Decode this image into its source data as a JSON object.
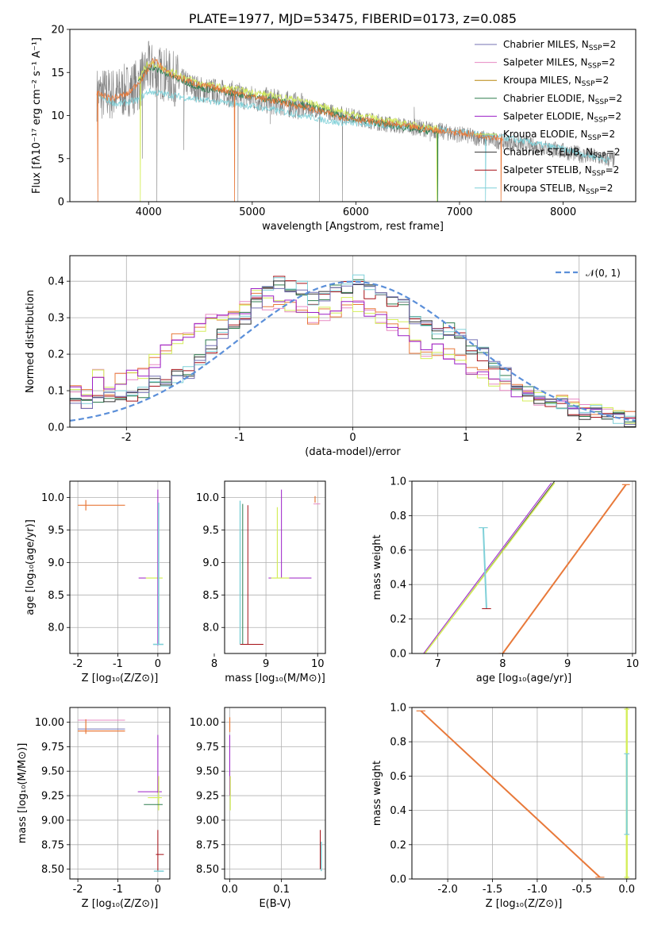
{
  "colors": {
    "Chabrier MILES": "#7570b3",
    "Salpeter MILES": "#e78ac3",
    "Kroupa MILES": "#b8860b",
    "Chabrier ELODIE": "#2e7d4f",
    "Salpeter ELODIE": "#9b1fc6",
    "Kroupa ELODIE": "#d4ee5a",
    "Chabrier STELIB": "#333333",
    "Salpeter STELIB": "#a50f15",
    "Kroupa STELIB": "#7fd0d8",
    "data": "#808080",
    "orange": "#e8793a",
    "normal": "#5b8fd9"
  },
  "chart_data": [
    {
      "id": "spectrum",
      "type": "line",
      "title": "PLATE=1977, MJD=53475, FIBERID=0173, z=0.085",
      "xlabel": "wavelength [Angstrom, rest frame]",
      "ylabel": "Flux [fλ10⁻¹⁷ erg cm⁻² s⁻¹ A⁻¹]",
      "xlim": [
        3240,
        8700
      ],
      "ylim": [
        0,
        20
      ],
      "xticks": [
        4000,
        5000,
        6000,
        7000,
        8000
      ],
      "yticks": [
        0,
        5,
        10,
        15,
        20
      ],
      "legend_position": "top-right",
      "legend": [
        "Chabrier MILES, N_SSP=2",
        "Salpeter MILES, N_SSP=2",
        "Kroupa MILES, N_SSP=2",
        "Chabrier ELODIE, N_SSP=2",
        "Salpeter ELODIE, N_SSP=2",
        "Kroupa ELODIE, N_SSP=2",
        "Chabrier STELIB, N_SSP=2",
        "Salpeter STELIB, N_SSP=2",
        "Kroupa STELIB, N_SSP=2"
      ],
      "data_continuum": [
        [
          3500,
          12.5
        ],
        [
          3700,
          12.5
        ],
        [
          3900,
          13.5
        ],
        [
          4000,
          15.5
        ],
        [
          4200,
          14.5
        ],
        [
          4500,
          13.0
        ],
        [
          4800,
          12.5
        ],
        [
          5000,
          12.0
        ],
        [
          5500,
          11.0
        ],
        [
          5800,
          10.3
        ],
        [
          6000,
          9.8
        ],
        [
          6300,
          9.0
        ],
        [
          6600,
          8.6
        ],
        [
          7000,
          7.8
        ],
        [
          7400,
          7.0
        ],
        [
          7800,
          6.3
        ],
        [
          8200,
          5.4
        ],
        [
          8500,
          4.8
        ]
      ],
      "model_miles": [
        [
          3500,
          12.5
        ],
        [
          3650,
          12.0
        ],
        [
          3800,
          12.5
        ],
        [
          3950,
          14.5
        ],
        [
          4050,
          16.5
        ],
        [
          4200,
          14.8
        ],
        [
          4500,
          13.5
        ],
        [
          4800,
          12.8
        ],
        [
          5000,
          12.2
        ],
        [
          5500,
          11.0
        ],
        [
          5800,
          10.0
        ],
        [
          6000,
          9.6
        ],
        [
          6500,
          8.7
        ],
        [
          7000,
          8.0
        ],
        [
          7420,
          7.4
        ]
      ],
      "model_elodie": [
        [
          3900,
          14.0
        ],
        [
          4000,
          16.0
        ],
        [
          4200,
          15.0
        ],
        [
          4500,
          13.5
        ],
        [
          5000,
          12.5
        ],
        [
          5500,
          11.5
        ],
        [
          5800,
          10.4
        ],
        [
          6000,
          9.9
        ],
        [
          6500,
          8.8
        ],
        [
          6800,
          8.3
        ]
      ],
      "model_stelib": [
        [
          3500,
          12.0
        ],
        [
          3700,
          11.0
        ],
        [
          3900,
          11.5
        ],
        [
          4000,
          12.5
        ],
        [
          4500,
          11.5
        ],
        [
          5000,
          10.8
        ],
        [
          5500,
          9.7
        ],
        [
          5800,
          8.9
        ],
        [
          6000,
          8.8
        ],
        [
          6500,
          8.4
        ],
        [
          7000,
          7.8
        ],
        [
          7500,
          7.0
        ],
        [
          8000,
          5.8
        ],
        [
          8450,
          4.5
        ]
      ]
    },
    {
      "id": "residuals",
      "type": "step",
      "xlabel": "(data-model)/error",
      "ylabel": "Normed distribution",
      "xlim": [
        -2.5,
        2.5
      ],
      "ylim": [
        0,
        0.47
      ],
      "xticks": [
        -2,
        -1,
        0,
        1,
        2
      ],
      "yticks": [
        0.0,
        0.1,
        0.2,
        0.3,
        0.4
      ],
      "legend_position": "top-right",
      "normal_label": "𝒩(0, 1)",
      "bin_width": 0.1,
      "bin_start": -2.5,
      "hist_a": [
        0.1,
        0.1,
        0.14,
        0.1,
        0.13,
        0.14,
        0.15,
        0.18,
        0.22,
        0.24,
        0.25,
        0.27,
        0.29,
        0.3,
        0.31,
        0.33,
        0.36,
        0.34,
        0.34,
        0.33,
        0.32,
        0.3,
        0.31,
        0.32,
        0.34,
        0.33,
        0.31,
        0.3,
        0.28,
        0.27,
        0.22,
        0.2,
        0.21,
        0.2,
        0.18,
        0.16,
        0.15,
        0.13,
        0.12,
        0.1,
        0.09,
        0.08,
        0.07,
        0.07,
        0.06,
        0.05,
        0.05,
        0.04,
        0.04,
        0.03
      ],
      "hist_b": [
        0.07,
        0.07,
        0.07,
        0.08,
        0.08,
        0.09,
        0.1,
        0.12,
        0.13,
        0.14,
        0.15,
        0.18,
        0.22,
        0.26,
        0.28,
        0.3,
        0.34,
        0.38,
        0.4,
        0.39,
        0.38,
        0.35,
        0.36,
        0.37,
        0.38,
        0.4,
        0.37,
        0.35,
        0.34,
        0.33,
        0.3,
        0.28,
        0.26,
        0.27,
        0.26,
        0.22,
        0.2,
        0.17,
        0.15,
        0.12,
        0.1,
        0.08,
        0.07,
        0.06,
        0.05,
        0.04,
        0.04,
        0.03,
        0.03,
        0.02
      ]
    },
    {
      "id": "age-vs-Z",
      "type": "errorbar",
      "xlabel": "Z [log₁₀(Z/Z⊙)]",
      "ylabel": "age  [log₁₀(age/yr)]",
      "xlim": [
        -2.2,
        0.3
      ],
      "ylim": [
        7.6,
        10.25
      ],
      "xticks": [
        -2,
        -1,
        0
      ],
      "yticks": [
        8.0,
        8.5,
        9.0,
        9.5,
        10.0
      ]
    },
    {
      "id": "age-vs-mass",
      "type": "errorbar",
      "xlabel": "mass [log₁₀(M/M⊙)]",
      "xlim": [
        8.2,
        10.15
      ],
      "ylim": [
        7.6,
        10.25
      ],
      "xticks": [
        8,
        9,
        10
      ],
      "yticks": [
        8.0,
        8.5,
        9.0,
        9.5,
        10.0
      ]
    },
    {
      "id": "massweight-vs-age",
      "type": "line",
      "xlabel": "age  [log₁₀(age/yr)]",
      "ylabel": "mass weight",
      "xlim": [
        6.6,
        10.05
      ],
      "ylim": [
        0,
        1
      ],
      "xticks": [
        7,
        8,
        9,
        10
      ],
      "yticks": [
        0.0,
        0.2,
        0.4,
        0.6,
        0.8,
        1.0
      ]
    },
    {
      "id": "mass-vs-Z",
      "type": "errorbar",
      "xlabel": "Z [log₁₀(Z/Z⊙)]",
      "ylabel": "mass [log₁₀(M/M⊙)]",
      "xlim": [
        -2.2,
        0.3
      ],
      "ylim": [
        8.4,
        10.15
      ],
      "xticks": [
        -2,
        -1,
        0
      ],
      "yticks": [
        8.5,
        8.75,
        9.0,
        9.25,
        9.5,
        9.75,
        10.0
      ]
    },
    {
      "id": "mass-vs-EBV",
      "type": "errorbar",
      "xlabel": "E(B-V)",
      "xlim": [
        -0.01,
        0.185
      ],
      "ylim": [
        8.4,
        10.15
      ],
      "xticks": [
        0.0,
        0.1
      ],
      "yticks": [
        8.5,
        8.75,
        9.0,
        9.25,
        9.5,
        9.75,
        10.0
      ]
    },
    {
      "id": "massweight-vs-Z",
      "type": "line",
      "xlabel": "Z [log₁₀(Z/Z⊙)]",
      "ylabel": "mass weight",
      "xlim": [
        -2.4,
        0.1
      ],
      "ylim": [
        0,
        1
      ],
      "xticks": [
        -2.0,
        -1.5,
        -1.0,
        -0.5,
        0.0
      ],
      "yticks": [
        0.0,
        0.2,
        0.4,
        0.6,
        0.8,
        1.0
      ]
    }
  ]
}
